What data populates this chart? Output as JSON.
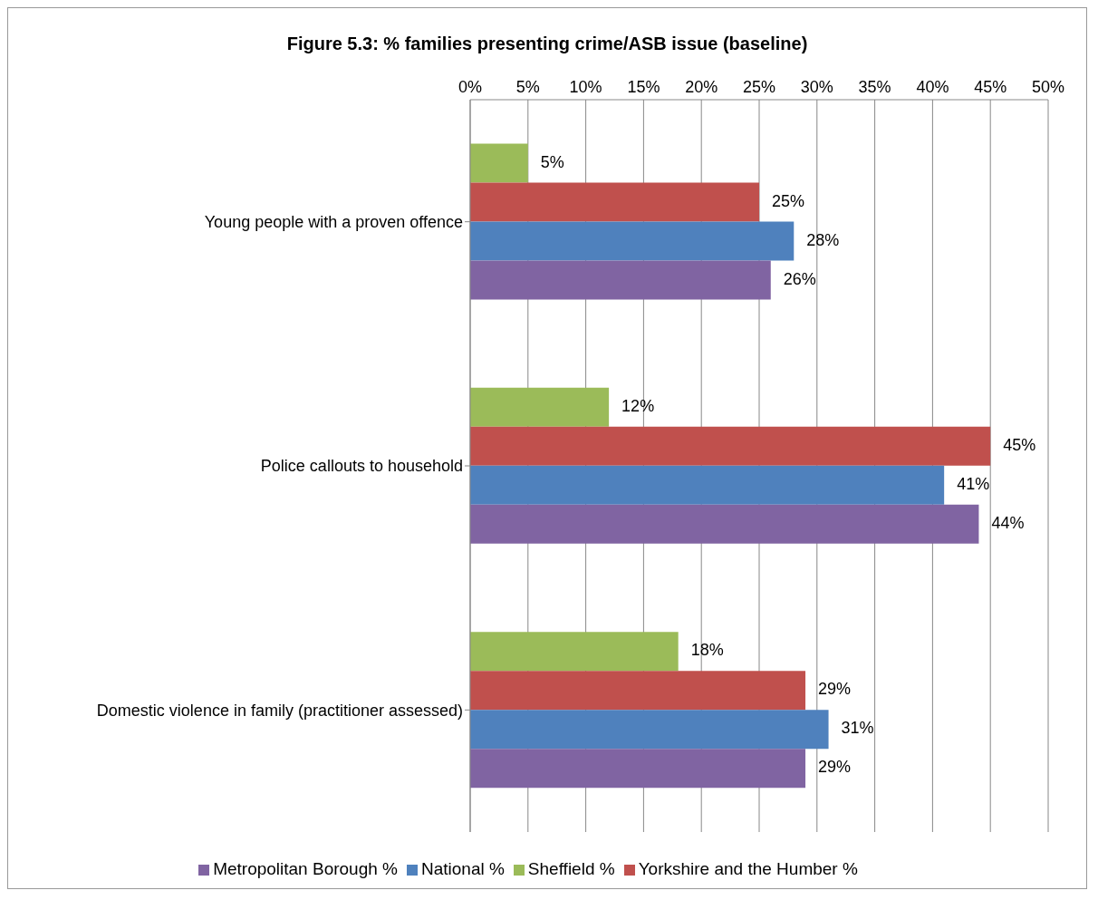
{
  "chart_data": {
    "type": "bar",
    "orientation": "horizontal",
    "title": "Figure 5.3: % families presenting crime/ASB issue (baseline)",
    "categories": [
      "Young people with a proven offence",
      "Police callouts to household",
      "Domestic violence in family (practitioner assessed)"
    ],
    "series": [
      {
        "name": "Sheffield %",
        "color": "#9bbb59",
        "values": [
          5,
          12,
          18
        ],
        "value_labels": [
          "5%",
          "12%",
          "18%"
        ]
      },
      {
        "name": "Yorkshire and the Humber %",
        "color": "#c0504d",
        "values": [
          25,
          45,
          29
        ],
        "value_labels": [
          "25%",
          "45%",
          "29%"
        ]
      },
      {
        "name": "National %",
        "color": "#4f81bd",
        "values": [
          28,
          41,
          31
        ],
        "value_labels": [
          "28%",
          "41%",
          "31%"
        ]
      },
      {
        "name": "Metropolitan Borough %",
        "color": "#8064a2",
        "values": [
          26,
          44,
          29
        ],
        "value_labels": [
          "26%",
          "44%",
          "29%"
        ]
      }
    ],
    "xlim": [
      0,
      50
    ],
    "xticks": [
      {
        "value": 0,
        "label": "0%"
      },
      {
        "value": 5,
        "label": "5%"
      },
      {
        "value": 10,
        "label": "10%"
      },
      {
        "value": 15,
        "label": "15%"
      },
      {
        "value": 20,
        "label": "20%"
      },
      {
        "value": 25,
        "label": "25%"
      },
      {
        "value": 30,
        "label": "30%"
      },
      {
        "value": 35,
        "label": "35%"
      },
      {
        "value": 40,
        "label": "40%"
      },
      {
        "value": 45,
        "label": "45%"
      },
      {
        "value": 50,
        "label": "50%"
      }
    ],
    "grid": "x",
    "legend": "bottom"
  }
}
